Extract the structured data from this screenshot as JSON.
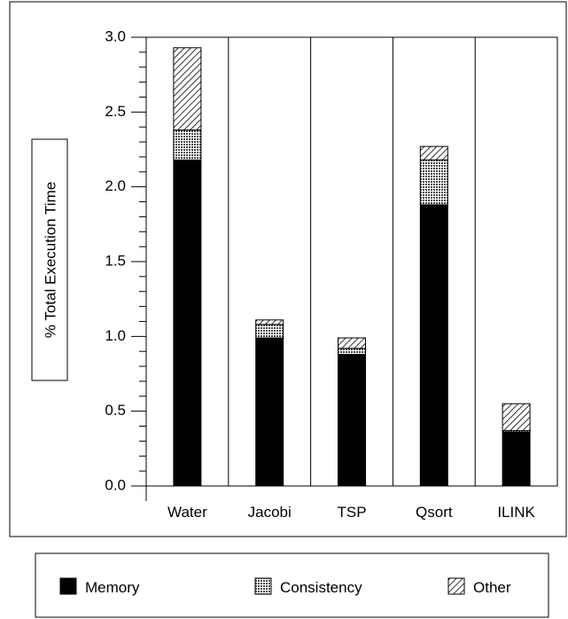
{
  "chart_data": {
    "type": "bar",
    "stacked": true,
    "categories": [
      "Water",
      "Jacobi",
      "TSP",
      "Qsort",
      "ILINK"
    ],
    "series": [
      {
        "name": "Memory",
        "values": [
          2.18,
          0.99,
          0.88,
          1.88,
          0.36
        ],
        "pattern": "solid"
      },
      {
        "name": "Consistency",
        "values": [
          0.2,
          0.09,
          0.04,
          0.3,
          0.01
        ],
        "pattern": "dots"
      },
      {
        "name": "Other",
        "values": [
          0.55,
          0.03,
          0.07,
          0.09,
          0.18
        ],
        "pattern": "hatch"
      }
    ],
    "ylabel": "% Total Execution Time",
    "xlabel": "",
    "title": "",
    "ylim": [
      0,
      3.0
    ],
    "yticks": [
      "0.0",
      "0.5",
      "1.0",
      "1.5",
      "2.0",
      "2.5",
      "3.0"
    ],
    "grid": "vertical",
    "legend_position": "bottom",
    "colors": {
      "memory": "#000000",
      "background": "#ffffff"
    }
  }
}
